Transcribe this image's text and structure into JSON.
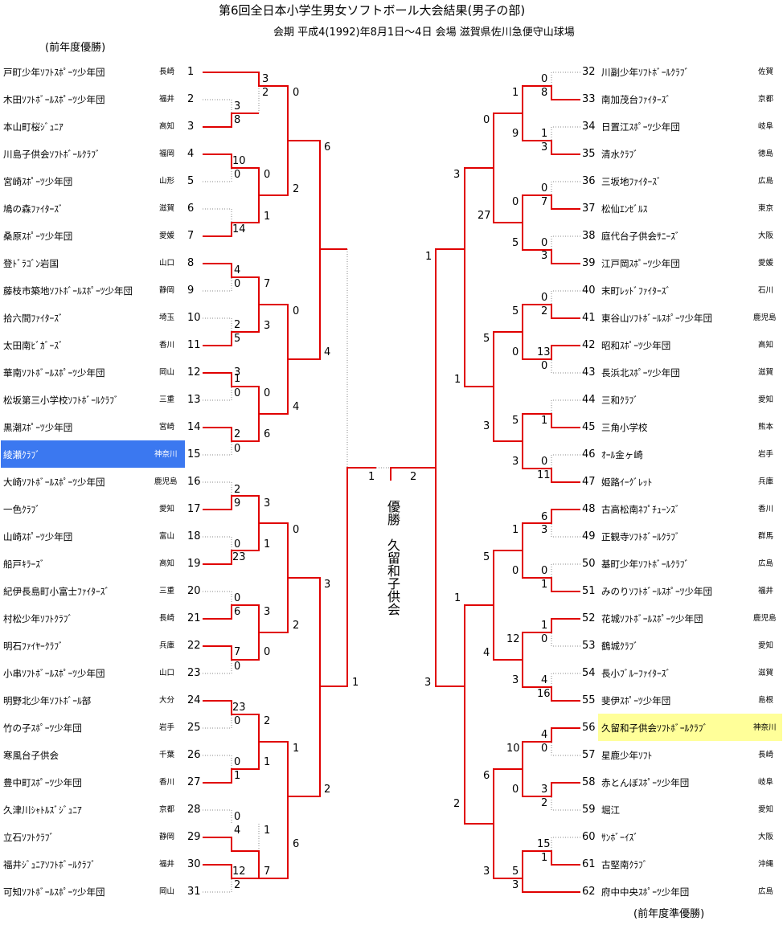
{
  "title": "第6回全日本小学生男女ソフトボール大会結果(男子の部)",
  "subtitle": "会期  平成4(1992)年8月1日〜4日  会場  滋賀県佐川急便守山球場",
  "prev_winner_label": "(前年度優勝)",
  "prev_runnerup_label": "(前年度準優勝)",
  "champion_label": "優勝",
  "champion_team": "久留和子供会",
  "colors": {
    "highlight_prev_winner": "#3b78f0",
    "highlight_prev_runnerup": "#ffff99",
    "winner_line": "#e00000",
    "loser_line": "#888888"
  },
  "left_teams": [
    {
      "seed": "1",
      "name": "戸町少年ｿﾌﾄｽﾎﾟｰﾂ少年団",
      "pref": "長崎"
    },
    {
      "seed": "2",
      "name": "木田ｿﾌﾄﾎﾞｰﾙｽﾎﾟｰﾂ少年団",
      "pref": "福井"
    },
    {
      "seed": "3",
      "name": "本山町桜ｼﾞｭﾆｱ",
      "pref": "高知"
    },
    {
      "seed": "4",
      "name": "川島子供会ｿﾌﾄﾎﾞｰﾙｸﾗﾌﾞ",
      "pref": "福岡"
    },
    {
      "seed": "5",
      "name": "宮崎ｽﾎﾟｰﾂ少年団",
      "pref": "山形"
    },
    {
      "seed": "6",
      "name": "鳩の森ﾌｧｲﾀｰｽﾞ",
      "pref": "滋賀"
    },
    {
      "seed": "7",
      "name": "桑原ｽﾎﾟｰﾂ少年団",
      "pref": "愛媛"
    },
    {
      "seed": "8",
      "name": "登ﾄﾞﾗｺﾞﾝ岩国",
      "pref": "山口"
    },
    {
      "seed": "9",
      "name": "藤枝市築地ｿﾌﾄﾎﾞｰﾙｽﾎﾟｰﾂ少年団",
      "pref": "静岡"
    },
    {
      "seed": "10",
      "name": "拾六間ﾌｧｲﾀｰｽﾞ",
      "pref": "埼玉"
    },
    {
      "seed": "11",
      "name": "太田南ﾋﾞｶﾞｰｽﾞ",
      "pref": "香川"
    },
    {
      "seed": "12",
      "name": "華南ｿﾌﾄﾎﾞｰﾙｽﾎﾟｰﾂ少年団",
      "pref": "岡山"
    },
    {
      "seed": "13",
      "name": "松坂第三小学校ｿﾌﾄﾎﾞｰﾙｸﾗﾌﾞ",
      "pref": "三重"
    },
    {
      "seed": "14",
      "name": "黒潮ｽﾎﾟｰﾂ少年団",
      "pref": "宮崎"
    },
    {
      "seed": "15",
      "name": "綾瀬ｸﾗﾌﾞ",
      "pref": "神奈川"
    },
    {
      "seed": "16",
      "name": "大崎ｿﾌﾄﾎﾞｰﾙｽﾎﾟｰﾂ少年団",
      "pref": "鹿児島"
    },
    {
      "seed": "17",
      "name": "一色ｸﾗﾌﾞ",
      "pref": "愛知"
    },
    {
      "seed": "18",
      "name": "山崎ｽﾎﾟｰﾂ少年団",
      "pref": "富山"
    },
    {
      "seed": "19",
      "name": "船戸ｷﾗｰｽﾞ",
      "pref": "高知"
    },
    {
      "seed": "20",
      "name": "紀伊長島町小富士ﾌｧｲﾀｰｽﾞ",
      "pref": "三重"
    },
    {
      "seed": "21",
      "name": "村松少年ｿﾌﾄｸﾗﾌﾞ",
      "pref": "長崎"
    },
    {
      "seed": "22",
      "name": "明石ﾌｧｲﾔｰｸﾗﾌﾞ",
      "pref": "兵庫"
    },
    {
      "seed": "23",
      "name": "小串ｿﾌﾄﾎﾞｰﾙｽﾎﾟｰﾂ少年団",
      "pref": "山口"
    },
    {
      "seed": "24",
      "name": "明野北少年ｿﾌﾄﾎﾞｰﾙ部",
      "pref": "大分"
    },
    {
      "seed": "25",
      "name": "竹の子ｽﾎﾟｰﾂ少年団",
      "pref": "岩手"
    },
    {
      "seed": "26",
      "name": "寒風台子供会",
      "pref": "千葉"
    },
    {
      "seed": "27",
      "name": "豊中町ｽﾎﾟｰﾂ少年団",
      "pref": "香川"
    },
    {
      "seed": "28",
      "name": "久津川ｼｬﾄﾙｽﾞｼﾞｭﾆｱ",
      "pref": "京都"
    },
    {
      "seed": "29",
      "name": "立石ｿﾌﾄｸﾗﾌﾞ",
      "pref": "静岡"
    },
    {
      "seed": "30",
      "name": "福井ｼﾞｭﾆｱｿﾌﾄﾎﾞｰﾙｸﾗﾌﾞ",
      "pref": "福井"
    },
    {
      "seed": "31",
      "name": "可知ｿﾌﾄﾎﾞｰﾙｽﾎﾟｰﾂ少年団",
      "pref": "岡山"
    }
  ],
  "right_teams": [
    {
      "seed": "32",
      "name": "川副少年ｿﾌﾄﾎﾞｰﾙｸﾗﾌﾞ",
      "pref": "佐賀"
    },
    {
      "seed": "33",
      "name": "南加茂台ﾌｧｲﾀｰｽﾞ",
      "pref": "京都"
    },
    {
      "seed": "34",
      "name": "日置江ｽﾎﾟｰﾂ少年団",
      "pref": "岐阜"
    },
    {
      "seed": "35",
      "name": "清水ｸﾗﾌﾞ",
      "pref": "徳島"
    },
    {
      "seed": "36",
      "name": "三坂地ﾌｧｲﾀｰｽﾞ",
      "pref": "広島"
    },
    {
      "seed": "37",
      "name": "松仙ｴﾝｾﾞﾙｽ",
      "pref": "東京"
    },
    {
      "seed": "38",
      "name": "庭代台子供会ｻﾆｰｽﾞ",
      "pref": "大阪"
    },
    {
      "seed": "39",
      "name": "江戸岡ｽﾎﾟｰﾂ少年団",
      "pref": "愛媛"
    },
    {
      "seed": "40",
      "name": "末町ﾚｯﾄﾞﾌｧｲﾀｰｽﾞ",
      "pref": "石川"
    },
    {
      "seed": "41",
      "name": "東谷山ｿﾌﾄﾎﾞｰﾙｽﾎﾟｰﾂ少年団",
      "pref": "鹿児島"
    },
    {
      "seed": "42",
      "name": "昭和ｽﾎﾟｰﾂ少年団",
      "pref": "高知"
    },
    {
      "seed": "43",
      "name": "長浜北ｽﾎﾟｰﾂ少年団",
      "pref": "滋賀"
    },
    {
      "seed": "44",
      "name": "三和ｸﾗﾌﾞ",
      "pref": "愛知"
    },
    {
      "seed": "45",
      "name": "三角小学校",
      "pref": "熊本"
    },
    {
      "seed": "46",
      "name": "ｵｰﾙ金ヶ崎",
      "pref": "岩手"
    },
    {
      "seed": "47",
      "name": "姫路ｲｰｸﾞﾚｯﾄ",
      "pref": "兵庫"
    },
    {
      "seed": "48",
      "name": "古高松南ﾈﾌﾟﾁｭｰﾝｽﾞ",
      "pref": "香川"
    },
    {
      "seed": "49",
      "name": "正観寺ｿﾌﾄﾎﾞｰﾙｸﾗﾌﾞ",
      "pref": "群馬"
    },
    {
      "seed": "50",
      "name": "基町少年ｿﾌﾄﾎﾞｰﾙｸﾗﾌﾞ",
      "pref": "広島"
    },
    {
      "seed": "51",
      "name": "みのりｿﾌﾄﾎﾞｰﾙｽﾎﾟｰﾂ少年団",
      "pref": "福井"
    },
    {
      "seed": "52",
      "name": "花城ｿﾌﾄﾎﾞｰﾙｽﾎﾟｰﾂ少年団",
      "pref": "鹿児島"
    },
    {
      "seed": "53",
      "name": "鶴城ｸﾗﾌﾞ",
      "pref": "愛知"
    },
    {
      "seed": "54",
      "name": "長小ﾌﾞﾙｰﾌｧｲﾀｰｽﾞ",
      "pref": "滋賀"
    },
    {
      "seed": "55",
      "name": "斐伊ｽﾎﾟｰﾂ少年団",
      "pref": "島根"
    },
    {
      "seed": "56",
      "name": "久留和子供会ｿﾌﾄﾎﾞｰﾙｸﾗﾌﾞ",
      "pref": "神奈川"
    },
    {
      "seed": "57",
      "name": "星鹿少年ｿﾌﾄ",
      "pref": "長崎"
    },
    {
      "seed": "58",
      "name": "赤とんぼｽﾎﾟｰﾂ少年団",
      "pref": "岐阜"
    },
    {
      "seed": "59",
      "name": "堀江",
      "pref": "愛知"
    },
    {
      "seed": "60",
      "name": "ｻﾝﾎﾞｰｲｽﾞ",
      "pref": "大阪"
    },
    {
      "seed": "61",
      "name": "古堅南ｸﾗﾌﾞ",
      "pref": "沖縄"
    },
    {
      "seed": "62",
      "name": "府中中央ｽﾎﾟｰﾂ少年団",
      "pref": "広島"
    }
  ],
  "scores": {
    "l1": "3",
    "l2": "2",
    "l3": "3",
    "l4": "8",
    "l5": "0",
    "l6": "6",
    "l7": "10",
    "l8": "0",
    "l9": "0",
    "l10": "14",
    "l11": "2",
    "l12": "1",
    "l13": "4",
    "l14": "0",
    "l15": "7",
    "l16": "0",
    "l17": "2",
    "l18": "5",
    "l19": "3",
    "l20": "3",
    "l21": "4",
    "l22": "1",
    "l23": "0",
    "l24": "0",
    "l25": "4",
    "l26": "2",
    "l27": "6",
    "l28": "0",
    "l29": "2",
    "l30": "9",
    "l31": "3",
    "l32": "0",
    "l33": "0",
    "l34": "23",
    "l35": "1",
    "l36": "0",
    "l37": "6",
    "l38": "3",
    "l39": "2",
    "l40": "7",
    "l41": "0",
    "l42": "0",
    "l43": "3",
    "l44": "23",
    "l45": "0",
    "l46": "2",
    "l47": "0",
    "l48": "1",
    "l49": "1",
    "l50": "1",
    "l51": "0",
    "l52": "4",
    "l53": "1",
    "l54": "12",
    "l55": "2",
    "l56": "7",
    "l57": "6",
    "l58": "2",
    "f1": "1",
    "f2": "2",
    "f3": "1",
    "f4": "3",
    "r1": "0",
    "r2": "8",
    "r3": "1",
    "r4": "3",
    "r5": "1",
    "r6": "9",
    "r7": "0",
    "r8": "3",
    "r9": "0",
    "r10": "7",
    "r11": "0",
    "r12": "3",
    "r13": "27",
    "r14": "5",
    "r15": "0",
    "r16": "2",
    "r17": "5",
    "r18": "13",
    "r19": "0",
    "r20": "0",
    "r21": "5",
    "r22": "0",
    "r23": "1",
    "r24": "1",
    "r25": "5",
    "r26": "0",
    "r27": "11",
    "r28": "3",
    "r29": "6",
    "r30": "3",
    "r31": "1",
    "r32": "0",
    "r33": "1",
    "r34": "5",
    "r35": "0",
    "r36": "1",
    "r37": "0",
    "r38": "12",
    "r39": "4",
    "r40": "4",
    "r41": "16",
    "r42": "3",
    "r43": "4",
    "r44": "0",
    "r45": "10",
    "r46": "3",
    "r47": "2",
    "r48": "0",
    "r49": "6",
    "r50": "15",
    "r51": "1",
    "r52": "5",
    "r53": "3",
    "r54": "3",
    "r55": "2",
    "r56": "1",
    "r57": "1",
    "r58": "3"
  }
}
